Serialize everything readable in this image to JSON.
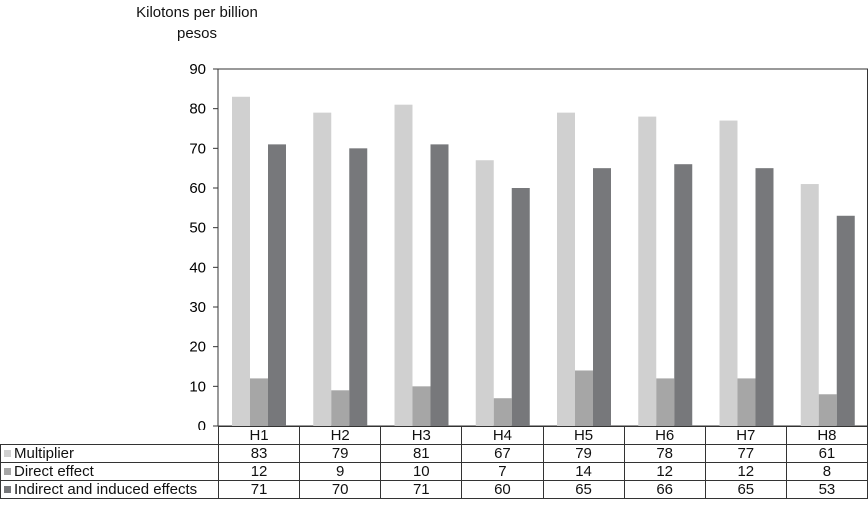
{
  "chart_data": {
    "type": "bar",
    "ylabel": "Kilotons per billion pesos",
    "ylim": [
      0,
      90
    ],
    "yticks": [
      0,
      10,
      20,
      30,
      40,
      50,
      60,
      70,
      80,
      90
    ],
    "categories": [
      "H1",
      "H2",
      "H3",
      "H4",
      "H5",
      "H6",
      "H7",
      "H8"
    ],
    "grid": false,
    "legend": "table-below",
    "series": [
      {
        "name": "Multiplier",
        "color": "#d0d0d0",
        "values": [
          83,
          79,
          81,
          67,
          79,
          78,
          77,
          61
        ]
      },
      {
        "name": "Direct effect",
        "color": "#a6a6a6",
        "values": [
          12,
          9,
          10,
          7,
          14,
          12,
          12,
          8
        ]
      },
      {
        "name": "Indirect and induced effects",
        "color": "#77787b",
        "values": [
          71,
          70,
          71,
          60,
          65,
          66,
          65,
          53
        ]
      }
    ]
  }
}
